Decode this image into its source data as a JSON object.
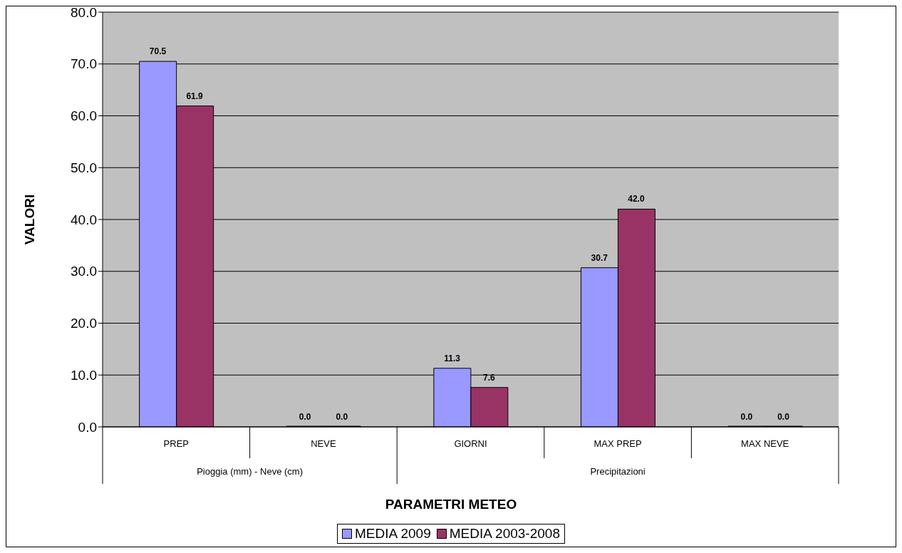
{
  "chart_data": {
    "type": "bar",
    "xlabel": "PARAMETRI METEO",
    "ylabel": "VALORI",
    "categories": [
      "PREP",
      "NEVE",
      "GIORNI",
      "MAX PREP",
      "MAX NEVE"
    ],
    "series": [
      {
        "name": "MEDIA 2009",
        "color": "#9999ff",
        "values": [
          70.5,
          0,
          11.3,
          30.7,
          0
        ],
        "value_labels": [
          "70.5",
          "0.0",
          "11.3",
          "30.7",
          "0.0"
        ]
      },
      {
        "name": "MEDIA 2003-2008",
        "color": "#993366",
        "values": [
          61.9,
          0,
          7.6,
          42.0,
          0
        ],
        "value_labels": [
          "61.9",
          "0.0",
          "7.6",
          "42.0",
          "0.0"
        ]
      }
    ],
    "annotations": [
      "Pioggia (mm) - Neve (cm)",
      "Precipitazioni"
    ],
    "ylim": [
      0,
      80
    ],
    "yticks": [
      {
        "value": 0,
        "label": "0.0"
      },
      {
        "value": 10,
        "label": "10.0"
      },
      {
        "value": 20,
        "label": "20.0"
      },
      {
        "value": 30,
        "label": "30.0"
      },
      {
        "value": 40,
        "label": "40.0"
      },
      {
        "value": 50,
        "label": "50.0"
      },
      {
        "value": 60,
        "label": "60.0"
      },
      {
        "value": 70,
        "label": "70.0"
      },
      {
        "value": 80,
        "label": "80.0"
      }
    ],
    "grid": "y",
    "legend": "bottom"
  }
}
